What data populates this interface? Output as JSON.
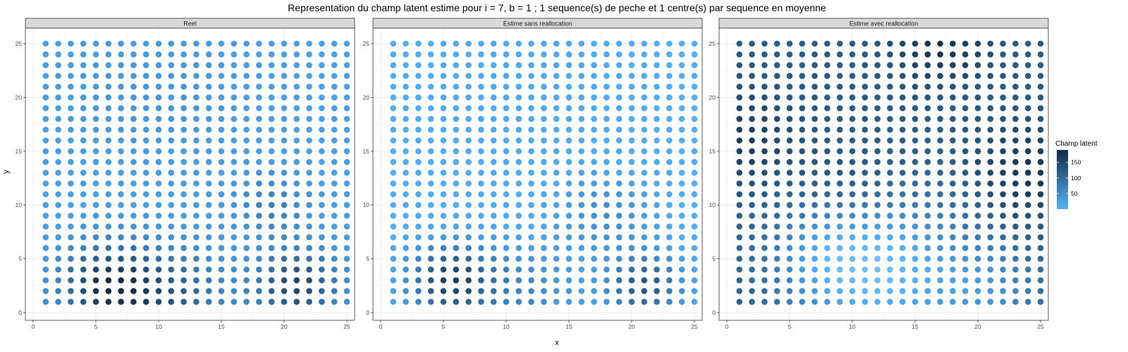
{
  "figure": {
    "title": "Representation du champ latent estime pour i = 7, b = 1 ; 1 sequence(s) de peche et 1 centre(s) par sequence en moyenne",
    "xlabel": "x",
    "ylabel": "y"
  },
  "legend": {
    "title": "Champ latent",
    "ticks": [
      150,
      100,
      50
    ],
    "range": [
      0,
      190
    ],
    "color_low": "#56B1F7",
    "color_high": "#132B43"
  },
  "chart_data": [
    {
      "type": "scatter",
      "panel": "Reel",
      "x_ticks": [
        0,
        5,
        10,
        15,
        20,
        25
      ],
      "y_ticks": [
        0,
        5,
        10,
        15,
        20,
        25
      ],
      "xlim": [
        0,
        25
      ],
      "ylim": [
        0,
        25
      ],
      "grid": true,
      "grid_size": 25,
      "field": {
        "base": 25,
        "blobs": [
          [
            6,
            2.5,
            2.5,
            150
          ],
          [
            21,
            2.5,
            2.2,
            130
          ],
          [
            19,
            10,
            2,
            45
          ],
          [
            11,
            1.5,
            3,
            90
          ],
          [
            10,
            20,
            5,
            12
          ]
        ]
      }
    },
    {
      "type": "scatter",
      "panel": "Estime sans reallocation",
      "x_ticks": [
        0,
        5,
        10,
        15,
        20,
        25
      ],
      "y_ticks": [
        0,
        5,
        10,
        15,
        20,
        25
      ],
      "xlim": [
        0,
        25
      ],
      "ylim": [
        0,
        25
      ],
      "grid": true,
      "grid_size": 25,
      "field": {
        "base": 5,
        "blobs": [
          [
            5.5,
            3,
            2.2,
            150
          ],
          [
            21,
            2.5,
            2,
            125
          ],
          [
            18,
            9,
            2.5,
            45
          ],
          [
            11,
            2,
            3,
            55
          ],
          [
            12,
            20,
            6,
            8
          ]
        ]
      }
    },
    {
      "type": "scatter",
      "panel": "Estime avec reallocation",
      "x_ticks": [
        0,
        5,
        10,
        15,
        20,
        25
      ],
      "y_ticks": [
        0,
        5,
        10,
        15,
        20,
        25
      ],
      "xlim": [
        0,
        25
      ],
      "ylim": [
        0,
        25
      ],
      "grid": true,
      "grid_size": 25,
      "field": {
        "base": 120,
        "blobs": [
          [
            1,
            16,
            3,
            45
          ],
          [
            24,
            13,
            3,
            55
          ],
          [
            17,
            25,
            2.5,
            60
          ],
          [
            10,
            11,
            3,
            35
          ],
          [
            12,
            4,
            5,
            -130
          ],
          [
            8,
            6,
            3,
            -40
          ],
          [
            21,
            2,
            3,
            -60
          ]
        ]
      }
    }
  ]
}
